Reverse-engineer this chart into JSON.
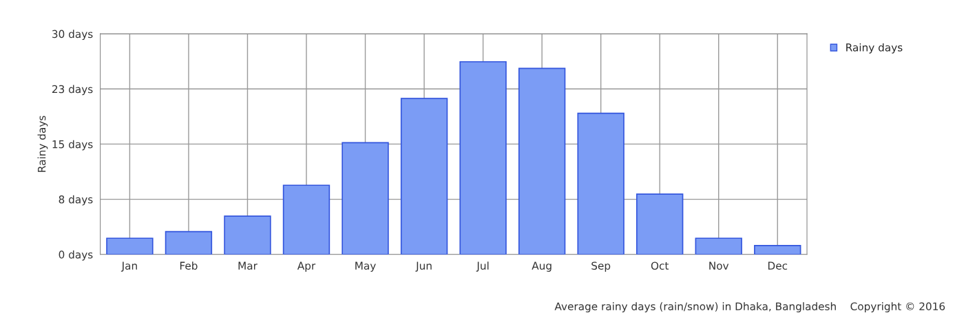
{
  "chart_data": {
    "type": "bar",
    "ylabel": "Rainy days",
    "categories": [
      "Jan",
      "Feb",
      "Mar",
      "Apr",
      "May",
      "Jun",
      "Jul",
      "Aug",
      "Sep",
      "Oct",
      "Nov",
      "Dec"
    ],
    "series": [
      {
        "name": "Rainy days",
        "color": "#7b9cf5",
        "values": [
          2.2,
          3.1,
          5.2,
          9.4,
          15.2,
          21.2,
          26.2,
          25.3,
          19.2,
          8.2,
          2.2,
          1.2
        ]
      }
    ],
    "ylim": [
      0,
      30
    ],
    "yticks": [
      {
        "value": 0,
        "label": "0 days"
      },
      {
        "value": 7.5,
        "label": "8 days"
      },
      {
        "value": 15,
        "label": "15 days"
      },
      {
        "value": 22.5,
        "label": "23 days"
      },
      {
        "value": 30,
        "label": "30 days"
      }
    ],
    "grid": true,
    "legend": "top right",
    "annotations": [
      "Average rainy days (rain/snow) in Dhaka, Bangladesh",
      "Copyright © 2016"
    ]
  }
}
